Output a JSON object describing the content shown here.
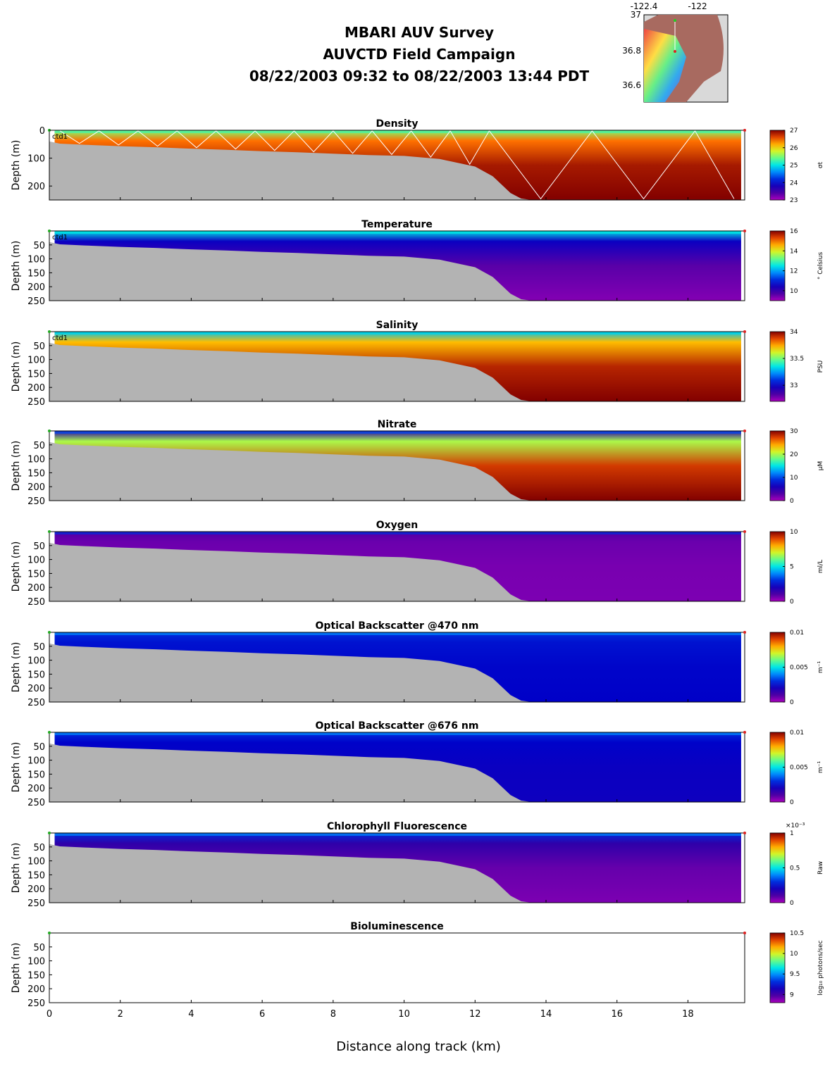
{
  "header": {
    "line1": "MBARI AUV Survey",
    "line2": "AUVCTD Field Campaign",
    "line3": "08/22/2003 09:32  to 08/22/2003 13:44 PDT"
  },
  "inset_map": {
    "x_ticks": [
      "-122.4",
      "-122"
    ],
    "y_ticks": [
      "37",
      "36.8",
      "36.6"
    ]
  },
  "chart_data": {
    "type": "heatmap",
    "xlabel": "Distance along track (km)",
    "xlim": [
      0,
      19.6
    ],
    "x_ticks": [
      0,
      2,
      4,
      6,
      8,
      10,
      12,
      14,
      16,
      18
    ],
    "ylabel": "Depth (m)",
    "ylim": [
      0,
      250
    ],
    "station_label": "ctd1",
    "bathymetry": {
      "x_km": [
        0,
        0.3,
        1,
        2,
        3,
        4,
        5,
        6,
        7,
        8,
        9,
        10,
        11,
        12,
        12.5,
        13,
        13.3,
        13.6
      ],
      "depth_m": [
        40,
        48,
        52,
        57,
        61,
        66,
        70,
        75,
        79,
        84,
        89,
        92,
        103,
        130,
        165,
        225,
        245,
        250
      ]
    },
    "panels": [
      {
        "title": "Density",
        "units": "σt",
        "cmin": 23,
        "cmax": 27,
        "cb_ticks": [
          "27",
          "26",
          "25",
          "24",
          "23"
        ],
        "y_ticks": [
          "0",
          "100",
          "200"
        ],
        "ymin": 0,
        "colormap": "jet-surface-high",
        "surface": 25.5,
        "deep": 27,
        "show_track": true,
        "has_data": true
      },
      {
        "title": "Temperature",
        "units": "° Celsius",
        "cmin": 9,
        "cmax": 16,
        "cb_ticks": [
          "16",
          "14",
          "12",
          "10"
        ],
        "y_ticks": [
          "50",
          "100",
          "150",
          "200",
          "250"
        ],
        "ymin": 0,
        "surface": 12.5,
        "deep": 9.3,
        "show_track": false,
        "has_data": true
      },
      {
        "title": "Salinity",
        "units": "PSU",
        "cmin": 32.7,
        "cmax": 34,
        "cb_ticks": [
          "34",
          "33.5",
          "33"
        ],
        "y_ticks": [
          "50",
          "100",
          "150",
          "200",
          "250"
        ],
        "ymin": 0,
        "surface": 33.3,
        "deep": 34,
        "show_track": false,
        "has_data": true
      },
      {
        "title": "Nitrate",
        "units": "μM",
        "cmin": 0,
        "cmax": 30,
        "cb_ticks": [
          "30",
          "20",
          "10",
          "0"
        ],
        "y_ticks": [
          "50",
          "100",
          "150",
          "200",
          "250"
        ],
        "ymin": 0,
        "surface": 5,
        "deep": 30,
        "show_track": false,
        "has_data": true
      },
      {
        "title": "Oxygen",
        "units": "ml/L",
        "cmin": 0,
        "cmax": 10,
        "cb_ticks": [
          "10",
          "5",
          "0"
        ],
        "y_ticks": [
          "50",
          "100",
          "150",
          "200",
          "250"
        ],
        "ymin": 0,
        "surface": 1,
        "deep": 0.5,
        "show_track": false,
        "has_data": true
      },
      {
        "title": "Optical Backscatter @470 nm",
        "units": "m⁻¹",
        "cmin": 0,
        "cmax": 0.01,
        "cb_ticks": [
          "0.01",
          "0.005",
          "0"
        ],
        "y_ticks": [
          "50",
          "100",
          "150",
          "200",
          "250"
        ],
        "ymin": 0,
        "surface": 0.003,
        "deep": 0.0025,
        "show_track": false,
        "has_data": true
      },
      {
        "title": "Optical Backscatter @676 nm",
        "units": "m⁻¹",
        "cmin": 0,
        "cmax": 0.01,
        "cb_ticks": [
          "0.01",
          "0.005",
          "0"
        ],
        "y_ticks": [
          "50",
          "100",
          "150",
          "200",
          "250"
        ],
        "ymin": 0,
        "surface": 0.003,
        "deep": 0.0022,
        "show_track": false,
        "has_data": true
      },
      {
        "title": "Chlorophyll Fluorescence",
        "units": "Raw",
        "cb_exponent": "×10⁻³",
        "cmin": 0,
        "cmax": 1,
        "cb_ticks": [
          "1",
          "0.5",
          "0"
        ],
        "y_ticks": [
          "50",
          "100",
          "150",
          "200",
          "250"
        ],
        "ymin": 0,
        "surface": 0.3,
        "deep": 0.05,
        "show_track": false,
        "has_data": true
      },
      {
        "title": "Bioluminescence",
        "units": "log₁₀ photons/sec",
        "cmin": 8.8,
        "cmax": 10.5,
        "cb_ticks": [
          "10.5",
          "10",
          "9.5",
          "9"
        ],
        "y_ticks": [
          "50",
          "100",
          "150",
          "200",
          "250"
        ],
        "ymin": 0,
        "show_track": false,
        "has_data": false
      }
    ]
  }
}
